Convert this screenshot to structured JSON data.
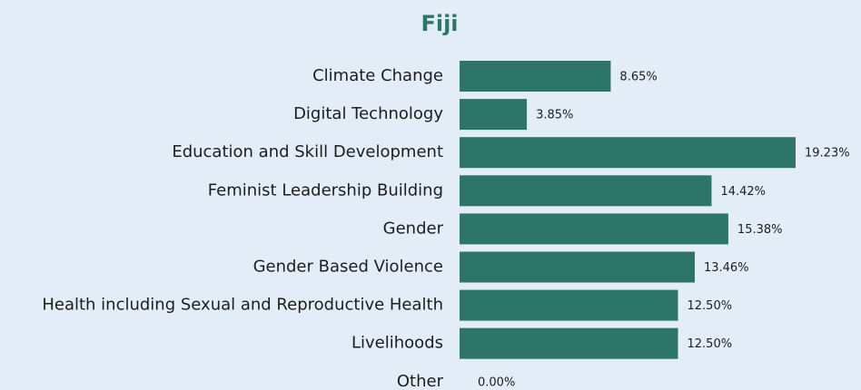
{
  "chart_data": {
    "type": "hbar",
    "title": "Fiji",
    "categories": [
      "Climate Change",
      "Digital Technology",
      "Education and Skill Development",
      "Feminist Leadership Building",
      "Gender",
      "Gender Based Violence",
      "Health including Sexual and Reproductive Health",
      "Livelihoods",
      "Other"
    ],
    "values": [
      8.65,
      3.85,
      19.23,
      14.42,
      15.38,
      13.46,
      12.5,
      12.5,
      0
    ],
    "value_labels": [
      "8.65%",
      "3.85%",
      "19.23%",
      "14.42%",
      "15.38%",
      "13.46%",
      "12.50%",
      "12.50%",
      "0.00%"
    ],
    "color": "#2e7569"
  }
}
